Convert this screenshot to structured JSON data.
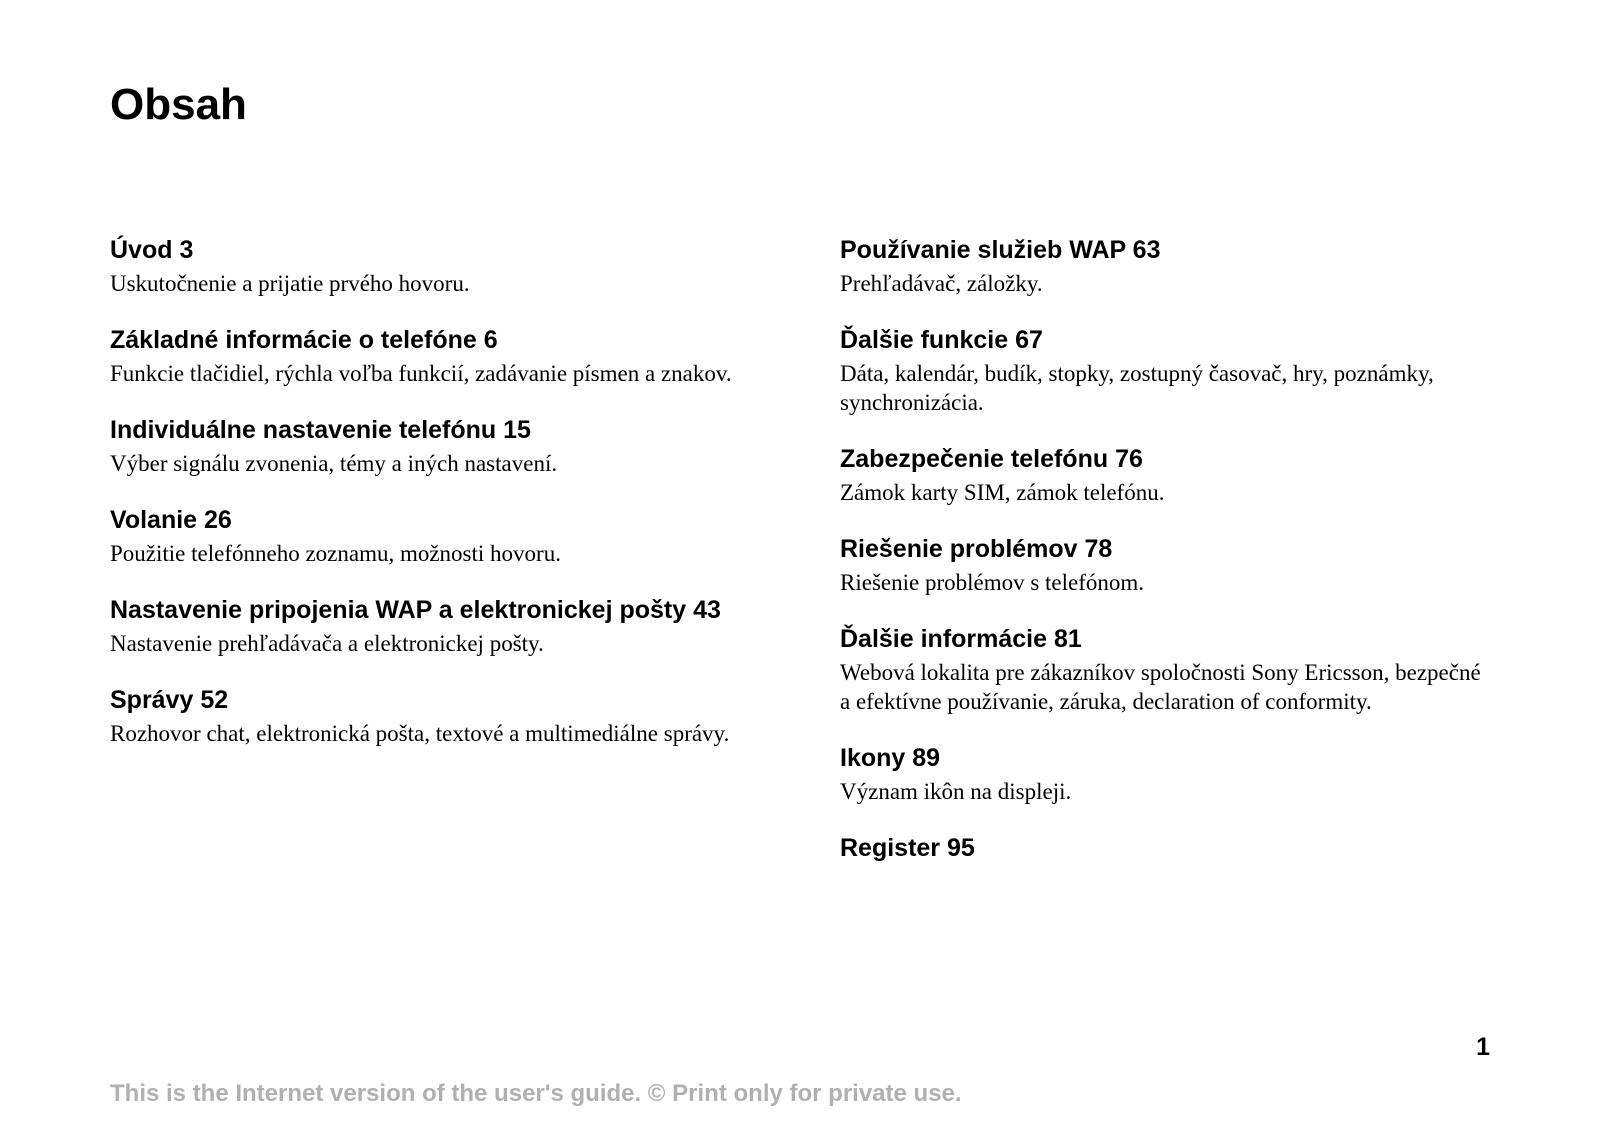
{
  "title": "Obsah",
  "page_number": "1",
  "footer_note": "This is the Internet version of the user's guide. © Print only for private use.",
  "colors": {
    "text": "#000000",
    "footer_text": "#b0b0b0",
    "background": "#ffffff"
  },
  "typography": {
    "title_font": "Arial",
    "title_size_pt": 33,
    "heading_font": "Arial",
    "heading_size_pt": 19,
    "body_font": "Georgia",
    "body_size_pt": 17
  },
  "left_column": [
    {
      "title": "Úvod",
      "page": "3",
      "desc": "Uskutočnenie a prijatie prvého hovoru."
    },
    {
      "title": "Základné informácie o telefóne",
      "page": "6",
      "desc": "Funkcie tlačidiel, rýchla voľba funkcií, zadávanie písmen a znakov."
    },
    {
      "title": "Individuálne nastavenie telefónu",
      "page": "15",
      "desc": "Výber signálu zvonenia, témy a iných nastavení."
    },
    {
      "title": "Volanie",
      "page": "26",
      "desc": "Použitie telefónneho zoznamu, možnosti hovoru."
    },
    {
      "title": "Nastavenie pripojenia WAP a elektronickej pošty",
      "page": "43",
      "desc": "Nastavenie prehľadávača a elektronickej pošty."
    },
    {
      "title": "Správy",
      "page": "52",
      "desc": "Rozhovor chat, elektronická pošta, textové a multimediálne správy."
    }
  ],
  "right_column": [
    {
      "title": "Používanie služieb WAP",
      "page": "63",
      "desc": "Prehľadávač, záložky."
    },
    {
      "title": "Ďalšie funkcie",
      "page": "67",
      "desc": "Dáta, kalendár, budík, stopky, zostupný časovač, hry, poznámky, synchronizácia."
    },
    {
      "title": "Zabezpečenie telefónu",
      "page": "76",
      "desc": "Zámok karty SIM, zámok telefónu."
    },
    {
      "title": "Riešenie problémov",
      "page": "78",
      "desc": "Riešenie problémov s telefónom."
    },
    {
      "title": "Ďalšie informácie",
      "page": "81",
      "desc": "Webová lokalita pre zákazníkov spoločnosti Sony Ericsson, bezpečné a efektívne používanie, záruka, declaration of conformity."
    },
    {
      "title": "Ikony",
      "page": "89",
      "desc": "Význam ikôn na displeji."
    },
    {
      "title": "Register",
      "page": "95",
      "desc": ""
    }
  ]
}
